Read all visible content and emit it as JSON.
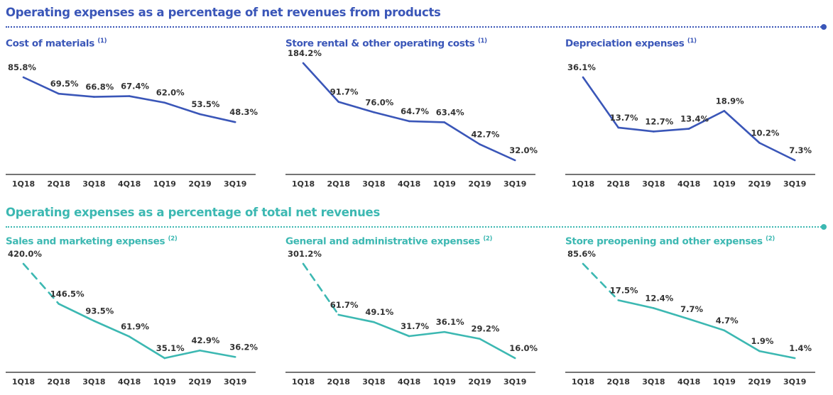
{
  "sections": [
    {
      "title": "Operating expenses  as a percentage of net revenues from products",
      "color": "#3a56b8"
    },
    {
      "title": "Operating expenses  as a percentage of total net revenues",
      "color": "#3cb8b2"
    }
  ],
  "chart_data": [
    {
      "type": "line",
      "title": "Cost of materials",
      "note": "(1)",
      "categories": [
        "1Q18",
        "2Q18",
        "3Q18",
        "4Q18",
        "1Q19",
        "2Q19",
        "3Q19"
      ],
      "values": [
        85.8,
        69.5,
        66.8,
        67.4,
        62.0,
        53.5,
        48.3
      ],
      "labels": [
        "85.8%",
        "69.5%",
        "66.8%",
        "67.4%",
        "62.0%",
        "53.5%",
        "48.3%"
      ],
      "color": "#3a56b8",
      "dashed_first_segment": false
    },
    {
      "type": "line",
      "title": "Store rental & other operating costs",
      "note": "(1)",
      "categories": [
        "1Q18",
        "2Q18",
        "3Q18",
        "4Q18",
        "1Q19",
        "2Q19",
        "3Q19"
      ],
      "values": [
        184.2,
        91.7,
        76.0,
        64.7,
        63.4,
        42.7,
        32.0
      ],
      "labels": [
        "184.2%",
        "91.7%",
        "76.0%",
        "64.7%",
        "63.4%",
        "42.7%",
        "32.0%"
      ],
      "color": "#3a56b8",
      "dashed_first_segment": false
    },
    {
      "type": "line",
      "title": "Depreciation expenses",
      "note": "(1)",
      "categories": [
        "1Q18",
        "2Q18",
        "3Q18",
        "4Q18",
        "1Q19",
        "2Q19",
        "3Q19"
      ],
      "values": [
        36.1,
        13.7,
        12.7,
        13.4,
        18.9,
        10.2,
        7.3
      ],
      "labels": [
        "36.1%",
        "13.7%",
        "12.7%",
        "13.4%",
        "18.9%",
        "10.2%",
        "7.3%"
      ],
      "color": "#3a56b8",
      "dashed_first_segment": false
    },
    {
      "type": "line",
      "title": "Sales and marketing expenses",
      "note": "(2)",
      "categories": [
        "1Q18",
        "2Q18",
        "3Q18",
        "4Q18",
        "1Q19",
        "2Q19",
        "3Q19"
      ],
      "values": [
        420.0,
        146.5,
        93.5,
        61.9,
        35.1,
        42.9,
        36.2
      ],
      "labels": [
        "420.0%",
        "146.5%",
        "93.5%",
        "61.9%",
        "35.1%",
        "42.9%",
        "36.2%"
      ],
      "color": "#3cb8b2",
      "dashed_first_segment": true
    },
    {
      "type": "line",
      "title": "General and administrative expenses",
      "note": "(2)",
      "categories": [
        "1Q18",
        "2Q18",
        "3Q18",
        "4Q18",
        "1Q19",
        "2Q19",
        "3Q19"
      ],
      "values": [
        301.2,
        61.7,
        49.1,
        31.7,
        36.1,
        29.2,
        16.0
      ],
      "labels": [
        "301.2%",
        "61.7%",
        "49.1%",
        "31.7%",
        "36.1%",
        "29.2%",
        "16.0%"
      ],
      "color": "#3cb8b2",
      "dashed_first_segment": true
    },
    {
      "type": "line",
      "title": "Store preopening and other expenses",
      "note": "(2)",
      "categories": [
        "1Q18",
        "2Q18",
        "3Q18",
        "4Q18",
        "1Q19",
        "2Q19",
        "3Q19"
      ],
      "values": [
        85.6,
        17.5,
        12.4,
        7.7,
        4.7,
        1.9,
        1.4
      ],
      "labels": [
        "85.6%",
        "17.5%",
        "12.4%",
        "7.7%",
        "4.7%",
        "1.9%",
        "1.4%"
      ],
      "color": "#3cb8b2",
      "dashed_first_segment": true
    }
  ]
}
